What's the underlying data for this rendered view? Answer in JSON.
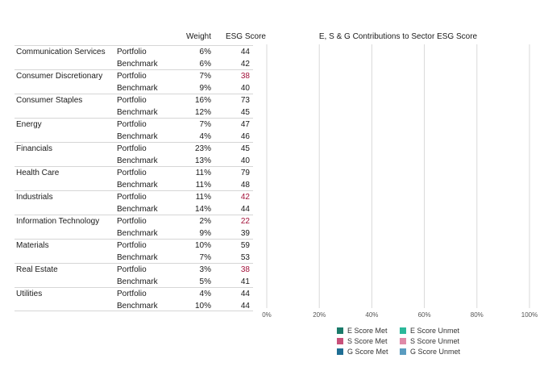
{
  "table": {
    "header_weight": "Weight",
    "header_esg": "ESG Score",
    "sectors": [
      {
        "name": "Communication Services",
        "rows": [
          {
            "type": "Portfolio",
            "weight": "6%",
            "score": "44",
            "low": false
          },
          {
            "type": "Benchmark",
            "weight": "6%",
            "score": "42",
            "low": false
          }
        ]
      },
      {
        "name": "Consumer Discretionary",
        "rows": [
          {
            "type": "Portfolio",
            "weight": "7%",
            "score": "38",
            "low": true
          },
          {
            "type": "Benchmark",
            "weight": "9%",
            "score": "40",
            "low": false
          }
        ]
      },
      {
        "name": "Consumer Staples",
        "rows": [
          {
            "type": "Portfolio",
            "weight": "16%",
            "score": "73",
            "low": false
          },
          {
            "type": "Benchmark",
            "weight": "12%",
            "score": "45",
            "low": false
          }
        ]
      },
      {
        "name": "Energy",
        "rows": [
          {
            "type": "Portfolio",
            "weight": "7%",
            "score": "47",
            "low": false
          },
          {
            "type": "Benchmark",
            "weight": "4%",
            "score": "46",
            "low": false
          }
        ]
      },
      {
        "name": "Financials",
        "rows": [
          {
            "type": "Portfolio",
            "weight": "23%",
            "score": "45",
            "low": false
          },
          {
            "type": "Benchmark",
            "weight": "13%",
            "score": "40",
            "low": false
          }
        ]
      },
      {
        "name": "Health Care",
        "rows": [
          {
            "type": "Portfolio",
            "weight": "11%",
            "score": "79",
            "low": false
          },
          {
            "type": "Benchmark",
            "weight": "11%",
            "score": "48",
            "low": false
          }
        ]
      },
      {
        "name": "Industrials",
        "rows": [
          {
            "type": "Portfolio",
            "weight": "11%",
            "score": "42",
            "low": true
          },
          {
            "type": "Benchmark",
            "weight": "14%",
            "score": "44",
            "low": false
          }
        ]
      },
      {
        "name": "Information Technology",
        "rows": [
          {
            "type": "Portfolio",
            "weight": "2%",
            "score": "22",
            "low": true
          },
          {
            "type": "Benchmark",
            "weight": "9%",
            "score": "39",
            "low": false
          }
        ]
      },
      {
        "name": "Materials",
        "rows": [
          {
            "type": "Portfolio",
            "weight": "10%",
            "score": "59",
            "low": false
          },
          {
            "type": "Benchmark",
            "weight": "7%",
            "score": "53",
            "low": false
          }
        ]
      },
      {
        "name": "Real Estate",
        "rows": [
          {
            "type": "Portfolio",
            "weight": "3%",
            "score": "38",
            "low": true
          },
          {
            "type": "Benchmark",
            "weight": "5%",
            "score": "41",
            "low": false
          }
        ]
      },
      {
        "name": "Utilities",
        "rows": [
          {
            "type": "Portfolio",
            "weight": "4%",
            "score": "44",
            "low": false
          },
          {
            "type": "Benchmark",
            "weight": "10%",
            "score": "44",
            "low": false
          }
        ]
      }
    ]
  },
  "chart_data": {
    "type": "bar",
    "orientation": "horizontal",
    "stacked": true,
    "title": "E, S & G Contributions to Sector ESG Score",
    "xlim": [
      0,
      100
    ],
    "x_ticks": [
      0,
      20,
      40,
      60,
      80,
      100
    ],
    "x_tick_labels": [
      "0%",
      "20%",
      "40%",
      "60%",
      "80%",
      "100%"
    ],
    "grid": true,
    "legend_position": "bottom",
    "categories": [],
    "series": [
      {
        "name": "E Score Met",
        "color": "#1a7a6a",
        "values": []
      },
      {
        "name": "E Score Unmet",
        "color": "#2bb89a",
        "values": []
      },
      {
        "name": "S Score Met",
        "color": "#c8507a",
        "values": []
      },
      {
        "name": "S Score Unmet",
        "color": "#e08aa8",
        "values": []
      },
      {
        "name": "G Score Met",
        "color": "#1f6e94",
        "values": []
      },
      {
        "name": "G Score Unmet",
        "color": "#5a9cc0",
        "values": []
      }
    ]
  }
}
